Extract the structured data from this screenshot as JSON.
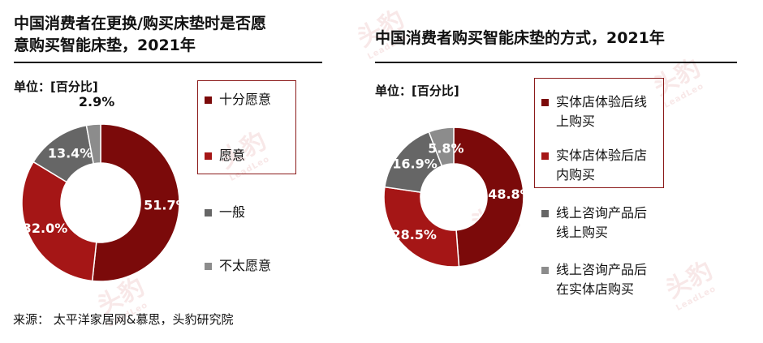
{
  "left": {
    "title_line1": "中国消费者在更换/购买床垫时是否愿",
    "title_line2": "意购买智能床垫，2021年",
    "unit": "单位：[百分比]",
    "source": "来源： 太平洋家居网&慕思，头豹研究院"
  },
  "right": {
    "title": "中国消费者购买智能床垫的方式，2021年",
    "unit": "单位：[百分比]"
  },
  "watermark": {
    "text": "头豹",
    "sub": "LeadLeo"
  },
  "chart_data": [
    {
      "type": "pie",
      "donut": true,
      "title": "中国消费者在更换/购买床垫时是否愿意购买智能床垫，2021年",
      "unit": "百分比",
      "categories": [
        "十分愿意",
        "愿意",
        "一般",
        "不太愿意"
      ],
      "values": [
        51.7,
        32.0,
        13.4,
        2.9
      ],
      "labels": [
        "51.7%",
        "32.0%",
        "13.4%",
        "2.9%"
      ],
      "colors": [
        "#7b0a0a",
        "#a51616",
        "#666666",
        "#8c8c8c"
      ],
      "legend_highlight": [
        0,
        1
      ],
      "legend": "right"
    },
    {
      "type": "pie",
      "donut": true,
      "title": "中国消费者购买智能床垫的方式，2021年",
      "unit": "百分比",
      "categories": [
        "实体店体验后线上购买",
        "实体店体验后店内购买",
        "线上咨询产品后线上购买",
        "线上咨询产品后在实体店购买"
      ],
      "legend_lines": [
        [
          "实体店体验后线",
          "上购买"
        ],
        [
          "实体店体验后店",
          "内购买"
        ],
        [
          "线上咨询产品后",
          "线上购买"
        ],
        [
          "线上咨询产品后",
          "在实体店购买"
        ]
      ],
      "values": [
        48.8,
        28.5,
        16.9,
        5.8
      ],
      "labels": [
        "48.8%",
        "28.5%",
        "16.9%",
        "5.8%"
      ],
      "colors": [
        "#7b0a0a",
        "#a51616",
        "#666666",
        "#8c8c8c"
      ],
      "legend_highlight": [
        0,
        1
      ],
      "legend": "right"
    }
  ]
}
